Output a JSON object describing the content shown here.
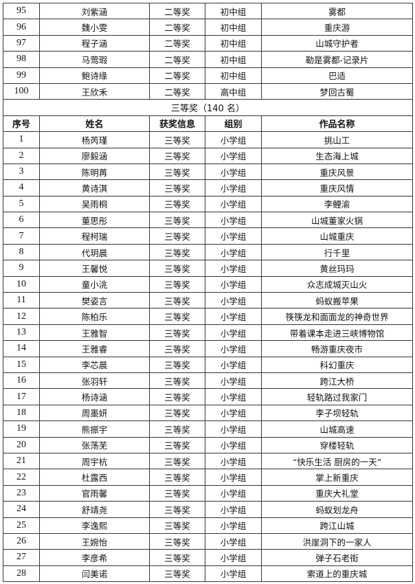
{
  "top_rows": [
    [
      "95",
      "刘紫涵",
      "二等奖",
      "初中组",
      "雾都"
    ],
    [
      "96",
      "魏小雯",
      "二等奖",
      "初中组",
      "重庆游"
    ],
    [
      "97",
      "程子涵",
      "二等奖",
      "初中组",
      "山城守护者"
    ],
    [
      "98",
      "马莺瑕",
      "二等奖",
      "初中组",
      "勒是雾都-记录片"
    ],
    [
      "99",
      "鲍诗缘",
      "二等奖",
      "初中组",
      "巴适"
    ],
    [
      "100",
      "王欣禾",
      "二等奖",
      "高中组",
      "梦回古蜀"
    ]
  ],
  "section_title": "三等奖（140 名）",
  "headers": [
    "序号",
    "姓名",
    "获奖信息",
    "组别",
    "作品名称"
  ],
  "rows": [
    [
      "1",
      "杨芮瑾",
      "三等奖",
      "小学组",
      "挑山工"
    ],
    [
      "2",
      "廖毅涵",
      "三等奖",
      "小学组",
      "生态海上城"
    ],
    [
      "3",
      "陈明苒",
      "三等奖",
      "小学组",
      "重庆风景"
    ],
    [
      "4",
      "黄诗淇",
      "三等奖",
      "小学组",
      "重庆风情"
    ],
    [
      "5",
      "吴雨桐",
      "三等奖",
      "小学组",
      "李鲤渝"
    ],
    [
      "6",
      "董思彤",
      "三等奖",
      "小学组",
      "山城董家火锅"
    ],
    [
      "7",
      "程柯瑞",
      "三等奖",
      "小学组",
      "山城重庆"
    ],
    [
      "8",
      "代玥晨",
      "三等奖",
      "小学组",
      "行千里"
    ],
    [
      "9",
      "王馨悦",
      "三等奖",
      "小学组",
      "黄丝玛玛"
    ],
    [
      "10",
      "童小洮",
      "三等奖",
      "小学组",
      "众志成城灭山火"
    ],
    [
      "11",
      "樊姿言",
      "三等奖",
      "小学组",
      "蚂蚁搬苹果"
    ],
    [
      "12",
      "陈柏乐",
      "三等奖",
      "小学组",
      "筷筷龙和面面龙的神奇世界"
    ],
    [
      "13",
      "王雅智",
      "三等奖",
      "小学组",
      "带着课本走进三峡博物馆"
    ],
    [
      "14",
      "王雅睿",
      "三等奖",
      "小学组",
      "畅游重庆夜市"
    ],
    [
      "15",
      "李芯晨",
      "三等奖",
      "小学组",
      "科幻重庆"
    ],
    [
      "16",
      "张羽轩",
      "三等奖",
      "小学组",
      "跨江大桥"
    ],
    [
      "17",
      "杨诗涵",
      "三等奖",
      "小学组",
      "轻轨路过我家门"
    ],
    [
      "18",
      "周墨妍",
      "三等奖",
      "小学组",
      "李子坝轻轨"
    ],
    [
      "19",
      "熊振宇",
      "三等奖",
      "小学组",
      "山城高速"
    ],
    [
      "20",
      "张荡芜",
      "三等奖",
      "小学组",
      "穿楼轻轨"
    ],
    [
      "21",
      "周宇杭",
      "三等奖",
      "小学组",
      "“快乐生活 厨房的一天”"
    ],
    [
      "22",
      "杜露西",
      "三等奖",
      "小学组",
      "掌上新重庆"
    ],
    [
      "23",
      "官雨馨",
      "三等奖",
      "小学组",
      "重庆大礼堂"
    ],
    [
      "24",
      "舒靖尧",
      "三等奖",
      "小学组",
      "蚂蚁划龙舟"
    ],
    [
      "25",
      "李逸熙",
      "三等奖",
      "小学组",
      "跨江山城"
    ],
    [
      "26",
      "王婉怡",
      "三等奖",
      "小学组",
      "洪崖洞下的一家人"
    ],
    [
      "27",
      "李彦希",
      "三等奖",
      "小学组",
      "弹子石老街"
    ],
    [
      "28",
      "闫美诺",
      "三等奖",
      "小学组",
      "索道上的重庆城"
    ]
  ]
}
